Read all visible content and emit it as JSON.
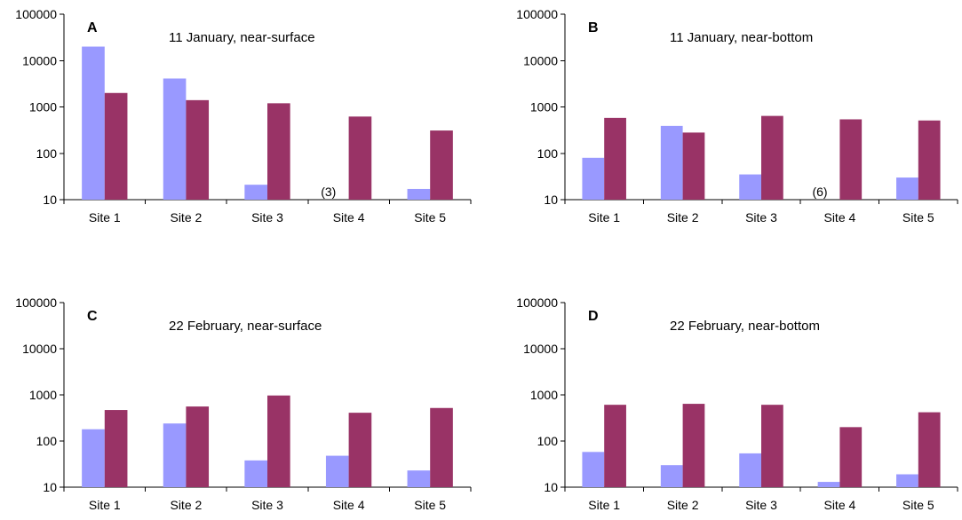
{
  "colors": {
    "series_1": "#9999ff",
    "series_2": "#993366",
    "axis": "#000000"
  },
  "chart_data": [
    {
      "type": "bar",
      "letter": "A",
      "title": "11 January, near-surface",
      "categories": [
        "Site 1",
        "Site 2",
        "Site 3",
        "Site 4",
        "Site 5"
      ],
      "yscale": "log",
      "ylim": [
        10,
        100000
      ],
      "yticks": [
        "10",
        "100",
        "1000",
        "10000",
        "100000"
      ],
      "grid": false,
      "series": [
        {
          "values": [
            20000,
            4100,
            21,
            null,
            17
          ]
        },
        {
          "values": [
            2000,
            1400,
            1200,
            620,
            310
          ]
        }
      ],
      "annotations": [
        {
          "category": "Site 4",
          "series": 0,
          "text": "(3)"
        }
      ]
    },
    {
      "type": "bar",
      "letter": "B",
      "title": "11 January, near-bottom",
      "categories": [
        "Site 1",
        "Site 2",
        "Site 3",
        "Site 4",
        "Site 5"
      ],
      "yscale": "log",
      "ylim": [
        10,
        100000
      ],
      "yticks": [
        "10",
        "100",
        "1000",
        "10000",
        "100000"
      ],
      "grid": false,
      "series": [
        {
          "values": [
            80,
            390,
            35,
            null,
            30
          ]
        },
        {
          "values": [
            580,
            280,
            640,
            540,
            510
          ]
        }
      ],
      "annotations": [
        {
          "category": "Site 4",
          "series": 0,
          "text": "(6)"
        }
      ]
    },
    {
      "type": "bar",
      "letter": "C",
      "title": "22 February, near-surface",
      "categories": [
        "Site 1",
        "Site 2",
        "Site 3",
        "Site 4",
        "Site 5"
      ],
      "yscale": "log",
      "ylim": [
        10,
        100000
      ],
      "yticks": [
        "10",
        "100",
        "1000",
        "10000",
        "100000"
      ],
      "grid": false,
      "series": [
        {
          "values": [
            180,
            240,
            38,
            48,
            23
          ]
        },
        {
          "values": [
            470,
            560,
            970,
            410,
            520
          ]
        }
      ],
      "annotations": []
    },
    {
      "type": "bar",
      "letter": "D",
      "title": "22 February, near-bottom",
      "categories": [
        "Site 1",
        "Site 2",
        "Site 3",
        "Site 4",
        "Site 5"
      ],
      "yscale": "log",
      "ylim": [
        10,
        100000
      ],
      "yticks": [
        "10",
        "100",
        "1000",
        "10000",
        "100000"
      ],
      "grid": false,
      "series": [
        {
          "values": [
            58,
            30,
            54,
            13,
            19
          ]
        },
        {
          "values": [
            610,
            640,
            610,
            200,
            420
          ]
        }
      ],
      "annotations": []
    }
  ]
}
